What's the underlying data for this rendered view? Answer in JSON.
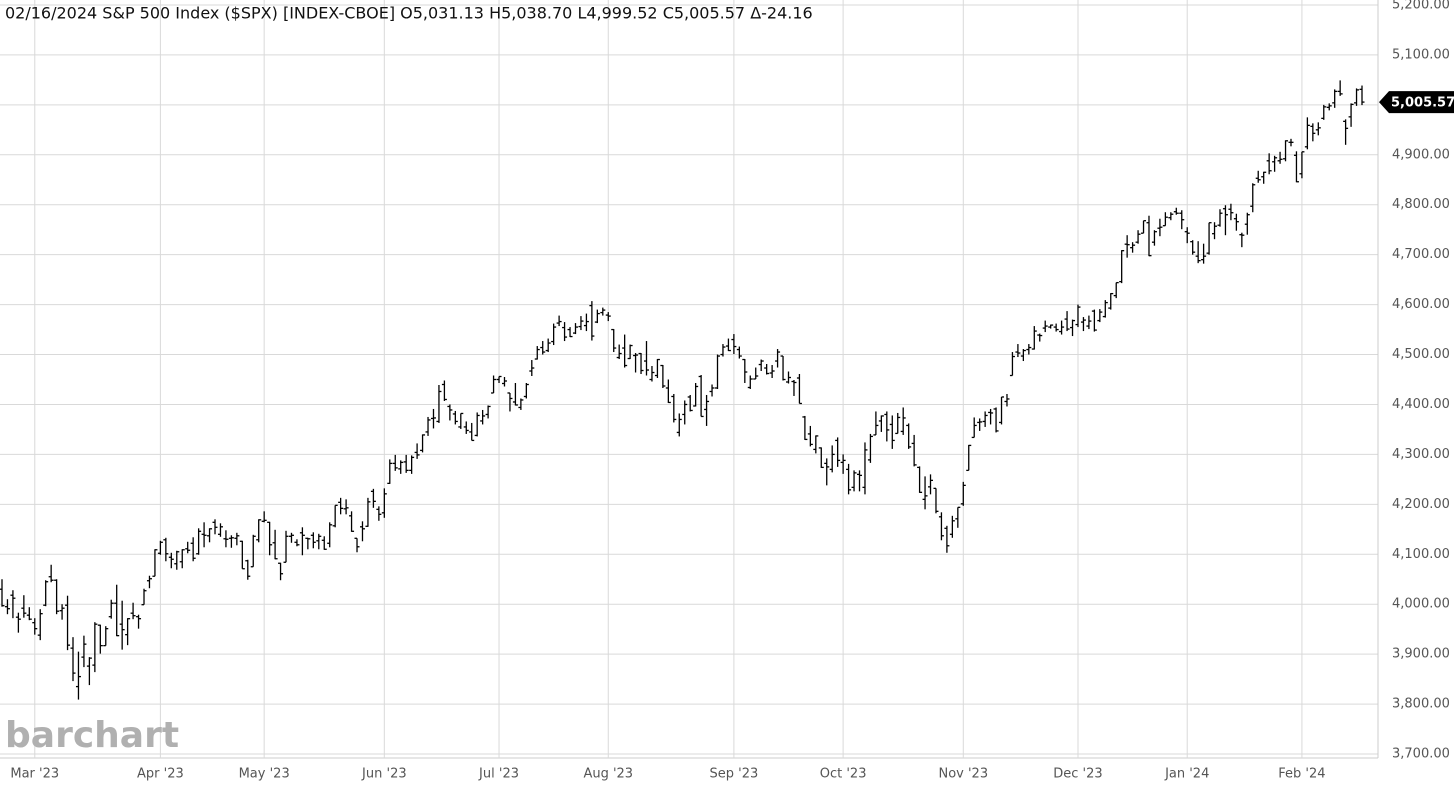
{
  "chart_data": {
    "type": "ohlc",
    "title": "02/16/2024 S&P 500 Index ($SPX) [INDEX-CBOE] O5,031.13 H5,038.70 L4,999.52 C5,005.57 Δ-24.16",
    "watermark": "barchart",
    "color": "#000000",
    "grid": true,
    "ylim": [
      3700,
      5200
    ],
    "yticks": [
      {
        "value": 3700,
        "label": "3,700.00"
      },
      {
        "value": 3800,
        "label": "3,800.00"
      },
      {
        "value": 3900,
        "label": "3,900.00"
      },
      {
        "value": 4000,
        "label": "4,000.00"
      },
      {
        "value": 4100,
        "label": "4,100.00"
      },
      {
        "value": 4200,
        "label": "4,200.00"
      },
      {
        "value": 4300,
        "label": "4,300.00"
      },
      {
        "value": 4400,
        "label": "4,400.00"
      },
      {
        "value": 4500,
        "label": "4,500.00"
      },
      {
        "value": 4600,
        "label": "4,600.00"
      },
      {
        "value": 4700,
        "label": "4,700.00"
      },
      {
        "value": 4800,
        "label": "4,800.00"
      },
      {
        "value": 4900,
        "label": "4,900.00"
      },
      {
        "value": 5000,
        "label": "5,000.00"
      },
      {
        "value": 5100,
        "label": "5,100.00"
      },
      {
        "value": 5200,
        "label": "5,200.00"
      }
    ],
    "last_price": {
      "value": 5005.57,
      "label": "5,005.57"
    },
    "categories": [
      null,
      null,
      null,
      null,
      null,
      null,
      "Mar '23",
      null,
      null,
      null,
      null,
      null,
      null,
      null,
      null,
      null,
      null,
      null,
      null,
      null,
      null,
      null,
      null,
      null,
      null,
      null,
      null,
      null,
      null,
      "Apr '23",
      null,
      null,
      null,
      null,
      null,
      null,
      null,
      null,
      null,
      null,
      null,
      null,
      null,
      null,
      null,
      null,
      null,
      null,
      "May '23",
      null,
      null,
      null,
      null,
      null,
      null,
      null,
      null,
      null,
      null,
      null,
      null,
      null,
      null,
      null,
      null,
      null,
      null,
      null,
      null,
      null,
      "Jun '23",
      null,
      null,
      null,
      null,
      null,
      null,
      null,
      null,
      null,
      null,
      null,
      null,
      null,
      null,
      null,
      null,
      null,
      null,
      null,
      null,
      "Jul '23",
      null,
      null,
      null,
      null,
      null,
      null,
      null,
      null,
      null,
      null,
      null,
      null,
      null,
      null,
      null,
      null,
      null,
      null,
      null,
      "Aug '23",
      null,
      null,
      null,
      null,
      null,
      null,
      null,
      null,
      null,
      null,
      null,
      null,
      null,
      null,
      null,
      null,
      null,
      null,
      null,
      null,
      null,
      null,
      "Sep '23",
      null,
      null,
      null,
      null,
      null,
      null,
      null,
      null,
      null,
      null,
      null,
      null,
      null,
      null,
      null,
      null,
      null,
      null,
      null,
      "Oct '23",
      null,
      null,
      null,
      null,
      null,
      null,
      null,
      null,
      null,
      null,
      null,
      null,
      null,
      null,
      null,
      null,
      null,
      null,
      null,
      null,
      null,
      "Nov '23",
      null,
      null,
      null,
      null,
      null,
      null,
      null,
      null,
      null,
      null,
      null,
      null,
      null,
      null,
      null,
      null,
      null,
      null,
      null,
      null,
      "Dec '23",
      null,
      null,
      null,
      null,
      null,
      null,
      null,
      null,
      null,
      null,
      null,
      null,
      null,
      null,
      null,
      null,
      null,
      null,
      null,
      "Jan '24",
      null,
      null,
      null,
      null,
      null,
      null,
      null,
      null,
      null,
      null,
      null,
      null,
      null,
      null,
      null,
      null,
      null,
      null,
      null,
      null,
      "Feb '24",
      null,
      null,
      null,
      null,
      null,
      null,
      null,
      null,
      null,
      null,
      null
    ],
    "open": [
      4030,
      3995,
      4018,
      3974,
      3992,
      3978,
      3963,
      3938,
      3998,
      4055,
      4048,
      3987,
      3998,
      3912,
      3835,
      3894,
      3876,
      3878,
      3958,
      3917,
      3975,
      4002,
      3960,
      3939,
      3982,
      3975,
      3999,
      4047,
      4056,
      4102,
      4129,
      4094,
      4081,
      4085,
      4111,
      4122,
      4101,
      4140,
      4137,
      4164,
      4140,
      4131,
      4132,
      4132,
      4126,
      4087,
      4075,
      4129,
      4166,
      4164,
      4123,
      4082,
      4084,
      4136,
      4124,
      4143,
      4132,
      4138,
      4127,
      4128,
      4122,
      4157,
      4204,
      4191,
      4177,
      4132,
      4155,
      4156,
      4226,
      4190,
      4183,
      4242,
      4282,
      4271,
      4285,
      4268,
      4304,
      4308,
      4345,
      4372,
      4366,
      4440,
      4396,
      4381,
      4355,
      4355,
      4345,
      4338,
      4367,
      4380,
      4423,
      4450,
      4442,
      4423,
      4405,
      4394,
      4416,
      4467,
      4491,
      4514,
      4508,
      4526,
      4563,
      4554,
      4550,
      4543,
      4556,
      4558,
      4598,
      4565,
      4584,
      4579,
      4550,
      4494,
      4513,
      4492,
      4498,
      4502,
      4487,
      4450,
      4458,
      4478,
      4433,
      4416,
      4344,
      4380,
      4415,
      4397,
      4456,
      4390,
      4426,
      4433,
      4500,
      4517,
      4530,
      4510,
      4490,
      4434,
      4451,
      4480,
      4473,
      4463,
      4487,
      4497,
      4445,
      4446,
      4453,
      4375,
      4341,
      4310,
      4313,
      4282,
      4270,
      4328,
      4284,
      4270,
      4234,
      4260,
      4234,
      4289,
      4339,
      4367,
      4380,
      4360,
      4342,
      4346,
      4358,
      4322,
      4274,
      4210,
      4235,
      4232,
      4175,
      4152,
      4140,
      4171,
      4201,
      4268,
      4334,
      4364,
      4366,
      4384,
      4391,
      4364,
      4406,
      4458,
      4505,
      4497,
      4510,
      4511,
      4539,
      4553,
      4555,
      4555,
      4546,
      4571,
      4554,
      4560,
      4565,
      4557,
      4587,
      4568,
      4576,
      4593,
      4618,
      4646,
      4721,
      4714,
      4725,
      4743,
      4764,
      4725,
      4753,
      4758,
      4774,
      4786,
      4783,
      4746,
      4726,
      4697,
      4690,
      4703,
      4742,
      4759,
      4792,
      4791,
      4772,
      4740,
      4761,
      4797,
      4853,
      4856,
      4888,
      4886,
      4888,
      4892,
      4925,
      4899,
      4862,
      4916,
      4957,
      4950,
      4973,
      4995,
      5004,
      5027,
      4967,
      4976,
      5004,
      5031.13
    ],
    "high": [
      4050,
      4010,
      4028,
      3983,
      4018,
      3994,
      3972,
      3990,
      4048,
      4079,
      4050,
      4000,
      4017,
      3934,
      3905,
      3937,
      3894,
      3964,
      3959,
      3956,
      4009,
      4039,
      4007,
      3972,
      4003,
      3979,
      4031,
      4057,
      4110,
      4127,
      4133,
      4103,
      4107,
      4110,
      4125,
      4134,
      4152,
      4164,
      4152,
      4170,
      4162,
      4148,
      4138,
      4143,
      4127,
      4089,
      4139,
      4170,
      4186,
      4165,
      4149,
      4083,
      4147,
      4143,
      4130,
      4154,
      4133,
      4144,
      4141,
      4136,
      4164,
      4198,
      4213,
      4210,
      4186,
      4132,
      4166,
      4213,
      4231,
      4196,
      4232,
      4290,
      4299,
      4288,
      4299,
      4298,
      4322,
      4340,
      4375,
      4391,
      4439,
      4448,
      4400,
      4387,
      4382,
      4366,
      4363,
      4384,
      4389,
      4398,
      4458,
      4456,
      4455,
      4423,
      4443,
      4412,
      4443,
      4489,
      4517,
      4527,
      4532,
      4562,
      4578,
      4565,
      4555,
      4563,
      4577,
      4582,
      4607,
      4590,
      4594,
      4585,
      4551,
      4520,
      4540,
      4520,
      4503,
      4503,
      4527,
      4477,
      4491,
      4479,
      4450,
      4421,
      4382,
      4408,
      4419,
      4443,
      4459,
      4419,
      4440,
      4500,
      4521,
      4532,
      4541,
      4516,
      4491,
      4458,
      4474,
      4490,
      4481,
      4479,
      4511,
      4497,
      4466,
      4449,
      4461,
      4377,
      4357,
      4338,
      4314,
      4292,
      4318,
      4334,
      4300,
      4281,
      4268,
      4268,
      4324,
      4341,
      4386,
      4378,
      4386,
      4378,
      4383,
      4394,
      4362,
      4339,
      4276,
      4256,
      4260,
      4232,
      4184,
      4157,
      4177,
      4194,
      4245,
      4319,
      4374,
      4372,
      4386,
      4391,
      4394,
      4415,
      4421,
      4505,
      4521,
      4511,
      4521,
      4557,
      4542,
      4568,
      4560,
      4562,
      4568,
      4587,
      4570,
      4600,
      4575,
      4578,
      4590,
      4591,
      4609,
      4623,
      4644,
      4709,
      4739,
      4725,
      4749,
      4768,
      4778,
      4749,
      4772,
      4785,
      4785,
      4794,
      4789,
      4755,
      4729,
      4727,
      4722,
      4764,
      4765,
      4791,
      4799,
      4802,
      4782,
      4744,
      4784,
      4843,
      4868,
      4866,
      4903,
      4898,
      4906,
      4929,
      4932,
      4907,
      4906,
      4975,
      4963,
      4965,
      5000,
      5003,
      5031,
      5049,
      4971,
      5003,
      5033,
      5038.7
    ],
    "low": [
      3995,
      3980,
      3972,
      3943,
      3973,
      3968,
      3939,
      3928,
      3996,
      4044,
      3980,
      3969,
      3908,
      3846,
      3809,
      3874,
      3838,
      3864,
      3901,
      3917,
      3971,
      3936,
      3909,
      3918,
      3970,
      3951,
      3999,
      4032,
      4056,
      4099,
      4086,
      4072,
      4069,
      4072,
      4102,
      4086,
      4099,
      4114,
      4124,
      4140,
      4135,
      4114,
      4113,
      4118,
      4071,
      4049,
      4075,
      4124,
      4164,
      4098,
      4090,
      4048,
      4084,
      4123,
      4116,
      4098,
      4110,
      4112,
      4110,
      4109,
      4114,
      4154,
      4180,
      4180,
      4145,
      4104,
      4126,
      4155,
      4193,
      4167,
      4173,
      4241,
      4267,
      4261,
      4263,
      4261,
      4291,
      4304,
      4337,
      4352,
      4363,
      4407,
      4368,
      4360,
      4351,
      4341,
      4328,
      4336,
      4360,
      4372,
      4423,
      4443,
      4436,
      4386,
      4398,
      4389,
      4412,
      4457,
      4490,
      4500,
      4505,
      4519,
      4557,
      4527,
      4535,
      4541,
      4549,
      4547,
      4528,
      4563,
      4578,
      4567,
      4505,
      4491,
      4474,
      4491,
      4464,
      4461,
      4458,
      4446,
      4453,
      4433,
      4403,
      4364,
      4336,
      4360,
      4386,
      4396,
      4376,
      4357,
      4416,
      4431,
      4496,
      4507,
      4501,
      4492,
      4443,
      4431,
      4451,
      4467,
      4460,
      4453,
      4474,
      4448,
      4442,
      4417,
      4402,
      4329,
      4316,
      4302,
      4273,
      4238,
      4264,
      4275,
      4261,
      4220,
      4226,
      4226,
      4220,
      4283,
      4339,
      4345,
      4326,
      4311,
      4342,
      4339,
      4311,
      4276,
      4223,
      4190,
      4220,
      4182,
      4128,
      4103,
      4133,
      4153,
      4197,
      4268,
      4334,
      4347,
      4355,
      4360,
      4344,
      4360,
      4396,
      4458,
      4495,
      4487,
      4500,
      4510,
      4526,
      4545,
      4552,
      4546,
      4540,
      4547,
      4537,
      4555,
      4547,
      4551,
      4546,
      4565,
      4574,
      4590,
      4613,
      4643,
      4694,
      4704,
      4722,
      4743,
      4697,
      4718,
      4737,
      4758,
      4769,
      4780,
      4751,
      4723,
      4700,
      4683,
      4682,
      4700,
      4731,
      4756,
      4739,
      4769,
      4748,
      4715,
      4740,
      4785,
      4844,
      4842,
      4861,
      4866,
      4882,
      4887,
      4917,
      4845,
      4853,
      4911,
      4927,
      4939,
      4970,
      4989,
      4994,
      5018,
      4920,
      4956,
      4998,
      4999.52
    ],
    "close": [
      3997,
      3991,
      4012,
      3970,
      3982,
      3970,
      3951,
      3981,
      4045,
      4048,
      3986,
      3992,
      3918,
      3862,
      3855,
      3920,
      3892,
      3960,
      3917,
      3951,
      4002,
      3937,
      3949,
      3971,
      3977,
      3971,
      4027,
      4051,
      4109,
      4124,
      4101,
      4090,
      4105,
      4109,
      4108,
      4092,
      4146,
      4138,
      4151,
      4154,
      4155,
      4130,
      4133,
      4137,
      4071,
      4056,
      4136,
      4169,
      4168,
      4119,
      4091,
      4061,
      4136,
      4138,
      4119,
      4138,
      4131,
      4124,
      4136,
      4110,
      4159,
      4198,
      4192,
      4193,
      4146,
      4115,
      4151,
      4205,
      4206,
      4180,
      4221,
      4282,
      4273,
      4284,
      4268,
      4294,
      4299,
      4339,
      4369,
      4373,
      4426,
      4410,
      4389,
      4366,
      4382,
      4348,
      4328,
      4378,
      4377,
      4396,
      4450,
      4456,
      4447,
      4412,
      4399,
      4409,
      4440,
      4473,
      4510,
      4505,
      4523,
      4555,
      4566,
      4535,
      4536,
      4555,
      4567,
      4566,
      4537,
      4582,
      4589,
      4577,
      4513,
      4502,
      4478,
      4518,
      4499,
      4468,
      4469,
      4464,
      4490,
      4437,
      4404,
      4370,
      4370,
      4400,
      4388,
      4436,
      4376,
      4406,
      4433,
      4497,
      4515,
      4508,
      4516,
      4497,
      4465,
      4451,
      4457,
      4487,
      4462,
      4467,
      4505,
      4450,
      4454,
      4444,
      4402,
      4330,
      4320,
      4337,
      4274,
      4275,
      4300,
      4288,
      4288,
      4229,
      4263,
      4258,
      4309,
      4336,
      4358,
      4377,
      4349,
      4328,
      4374,
      4373,
      4315,
      4279,
      4224,
      4217,
      4248,
      4186,
      4137,
      4117,
      4167,
      4194,
      4238,
      4318,
      4358,
      4365,
      4378,
      4383,
      4347,
      4415,
      4411,
      4496,
      4503,
      4508,
      4514,
      4547,
      4538,
      4557,
      4559,
      4550,
      4555,
      4551,
      4568,
      4595,
      4569,
      4567,
      4549,
      4585,
      4604,
      4622,
      4644,
      4708,
      4720,
      4719,
      4741,
      4768,
      4698,
      4746,
      4755,
      4775,
      4781,
      4783,
      4770,
      4743,
      4705,
      4688,
      4697,
      4764,
      4757,
      4783,
      4780,
      4784,
      4766,
      4739,
      4780,
      4840,
      4850,
      4865,
      4868,
      4894,
      4891,
      4928,
      4925,
      4846,
      4906,
      4959,
      4943,
      4954,
      4996,
      4998,
      5027,
      5022,
      4953,
      5001,
      5030,
      5005.57
    ]
  }
}
